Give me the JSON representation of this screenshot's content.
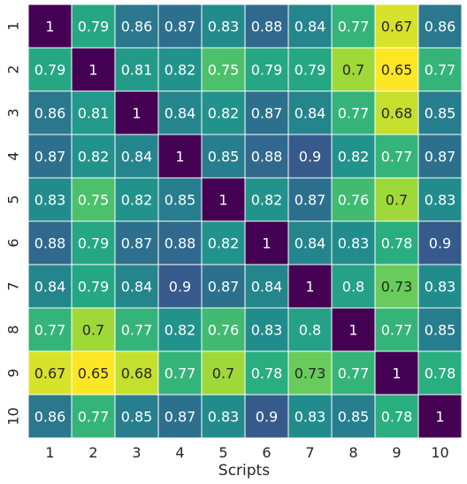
{
  "chart_data": {
    "type": "heatmap",
    "title": "",
    "xlabel": "Scripts",
    "ylabel": "",
    "x_categories": [
      "1",
      "2",
      "3",
      "4",
      "5",
      "6",
      "7",
      "8",
      "9",
      "10"
    ],
    "y_categories": [
      "1",
      "2",
      "3",
      "4",
      "5",
      "6",
      "7",
      "8",
      "9",
      "10"
    ],
    "values": [
      [
        1,
        0.79,
        0.86,
        0.87,
        0.83,
        0.88,
        0.84,
        0.77,
        0.67,
        0.86
      ],
      [
        0.79,
        1,
        0.81,
        0.82,
        0.75,
        0.79,
        0.79,
        0.7,
        0.65,
        0.77
      ],
      [
        0.86,
        0.81,
        1,
        0.84,
        0.82,
        0.87,
        0.84,
        0.77,
        0.68,
        0.85
      ],
      [
        0.87,
        0.82,
        0.84,
        1,
        0.85,
        0.88,
        0.9,
        0.82,
        0.77,
        0.87
      ],
      [
        0.83,
        0.75,
        0.82,
        0.85,
        1,
        0.82,
        0.87,
        0.76,
        0.7,
        0.83
      ],
      [
        0.88,
        0.79,
        0.87,
        0.88,
        0.82,
        1,
        0.84,
        0.83,
        0.78,
        0.9
      ],
      [
        0.84,
        0.79,
        0.84,
        0.9,
        0.87,
        0.84,
        1,
        0.8,
        0.73,
        0.83
      ],
      [
        0.77,
        0.7,
        0.77,
        0.82,
        0.76,
        0.83,
        0.8,
        1,
        0.77,
        0.85
      ],
      [
        0.67,
        0.65,
        0.68,
        0.77,
        0.7,
        0.78,
        0.73,
        0.77,
        1,
        0.78
      ],
      [
        0.86,
        0.77,
        0.85,
        0.87,
        0.83,
        0.9,
        0.83,
        0.85,
        0.78,
        1
      ]
    ],
    "colormap": "viridis",
    "colormap_reversed": true,
    "value_range": [
      0.65,
      1
    ],
    "grid": true,
    "legend": "none",
    "colors": {
      "grid_line": "#ffffff",
      "text_light": "#ffffff",
      "text_dark": "#262626"
    }
  }
}
